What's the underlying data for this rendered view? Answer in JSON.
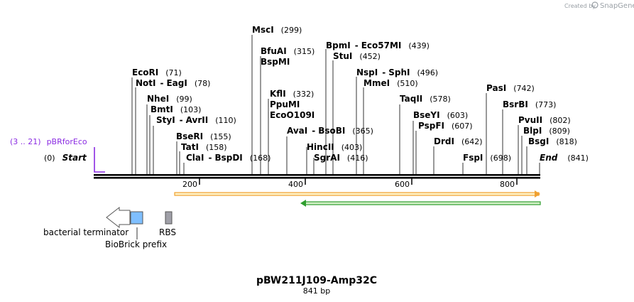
{
  "credit": {
    "created_by": "Created by",
    "brand": "SnapGene"
  },
  "title": "pBW211J109-Amp32C",
  "length_label": "841 bp",
  "colors": {
    "backbone": "#000000",
    "primer": "#8a2be2",
    "orange_feature": "#f0a030",
    "green_feature": "#2e9e2e",
    "biobrick": "#7fbfff",
    "rbs": "#a0a0a8"
  },
  "ruler": {
    "ticks": [
      "200",
      "400",
      "600",
      "800"
    ]
  },
  "start_label": {
    "pos": "(0)",
    "name": "Start"
  },
  "end_label": {
    "name": "End",
    "pos": "(841)"
  },
  "primer": {
    "range": "(3 .. 21)",
    "name": "pBRforEco"
  },
  "sites": [
    {
      "name": "MscI",
      "pos": "(299)"
    },
    {
      "name": "BfuAI",
      "pos": "(315)"
    },
    {
      "name": "BspMI",
      "pos": ""
    },
    {
      "name": "BpmI",
      "sep": "-",
      "name2": "Eco57MI",
      "pos": "(439)"
    },
    {
      "name": "StuI",
      "pos": "(452)"
    },
    {
      "name": "EcoRI",
      "pos": "(71)"
    },
    {
      "name": "NotI",
      "sep": "-",
      "name2": "EagI",
      "pos": "(78)"
    },
    {
      "name": "NspI",
      "sep": "-",
      "name2": "SphI",
      "pos": "(496)"
    },
    {
      "name": "MmeI",
      "pos": "(510)"
    },
    {
      "name": "PasI",
      "pos": "(742)"
    },
    {
      "name": "NheI",
      "pos": "(99)"
    },
    {
      "name": "KflI",
      "pos": "(332)"
    },
    {
      "name": "BmtI",
      "pos": "(103)"
    },
    {
      "name": "PpuMI",
      "pos": ""
    },
    {
      "name": "TaqII",
      "pos": "(578)"
    },
    {
      "name": "BsrBI",
      "pos": "(773)"
    },
    {
      "name": "EcoO109I",
      "pos": ""
    },
    {
      "name": "StyI",
      "sep": "-",
      "name2": "AvrII",
      "pos": "(110)"
    },
    {
      "name": "BseYI",
      "pos": "(603)"
    },
    {
      "name": "PvuII",
      "pos": "(802)"
    },
    {
      "name": "AvaI",
      "sep": "-",
      "name2": "BsoBI",
      "pos": "(365)"
    },
    {
      "name": "PspFI",
      "pos": "(607)"
    },
    {
      "name": "BlpI",
      "pos": "(809)"
    },
    {
      "name": "BseRI",
      "pos": "(155)"
    },
    {
      "name": "DrdI",
      "pos": "(642)"
    },
    {
      "name": "BsgI",
      "pos": "(818)"
    },
    {
      "name": "TatI",
      "pos": "(158)"
    },
    {
      "name": "HincII",
      "pos": "(403)"
    },
    {
      "name": "ClaI",
      "sep": "-",
      "name2": "BspDI",
      "pos": "(168)"
    },
    {
      "name": "SgrAI",
      "pos": "(416)"
    },
    {
      "name": "FspI",
      "pos": "(698)"
    }
  ],
  "features": [
    {
      "name": "bacterial terminator"
    },
    {
      "name": "BioBrick prefix"
    },
    {
      "name": "RBS"
    }
  ]
}
